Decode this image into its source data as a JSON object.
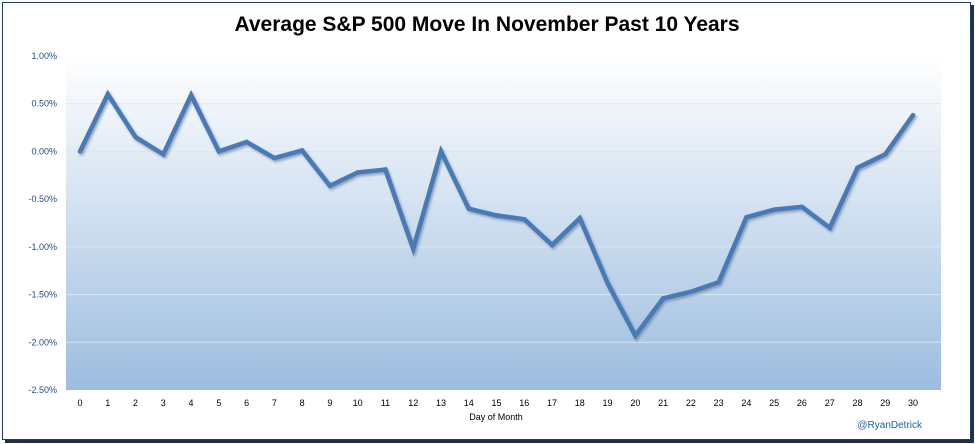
{
  "chart_data": {
    "type": "line",
    "title": "Average S&P 500 Move In November Past 10 Years",
    "xlabel": "Day of Month",
    "ylabel": "",
    "credit": "@RyanDetrick",
    "x": [
      0,
      1,
      2,
      3,
      4,
      5,
      6,
      7,
      8,
      9,
      10,
      11,
      12,
      13,
      14,
      15,
      16,
      17,
      18,
      19,
      20,
      21,
      22,
      23,
      24,
      25,
      26,
      27,
      28,
      29,
      30
    ],
    "y_ticks": [
      "1.00%",
      "0.50%",
      "0.00%",
      "-0.50%",
      "-1.00%",
      "-1.50%",
      "-2.00%",
      "-2.50%"
    ],
    "y_tick_values": [
      1.0,
      0.5,
      0.0,
      -0.5,
      -1.0,
      -1.5,
      -2.0,
      -2.5
    ],
    "ylim": [
      -2.5,
      1.0
    ],
    "grid": true,
    "legend": "none",
    "series": [
      {
        "values": [
          0.0,
          0.6,
          0.15,
          -0.03,
          0.59,
          0.0,
          0.1,
          -0.07,
          0.01,
          -0.36,
          -0.22,
          -0.19,
          -1.02,
          0.0,
          -0.6,
          -0.67,
          -0.71,
          -0.98,
          -0.7,
          -1.38,
          -1.93,
          -1.54,
          -1.47,
          -1.37,
          -0.69,
          -0.61,
          -0.58,
          -0.8,
          -0.17,
          -0.03,
          0.38
        ],
        "color": "#4a7ab8"
      }
    ],
    "colors": {
      "line": "#4a7ab8",
      "tick": "#1f4e89",
      "credit": "#1f5fa6",
      "grid": "#dbe6f2"
    }
  }
}
